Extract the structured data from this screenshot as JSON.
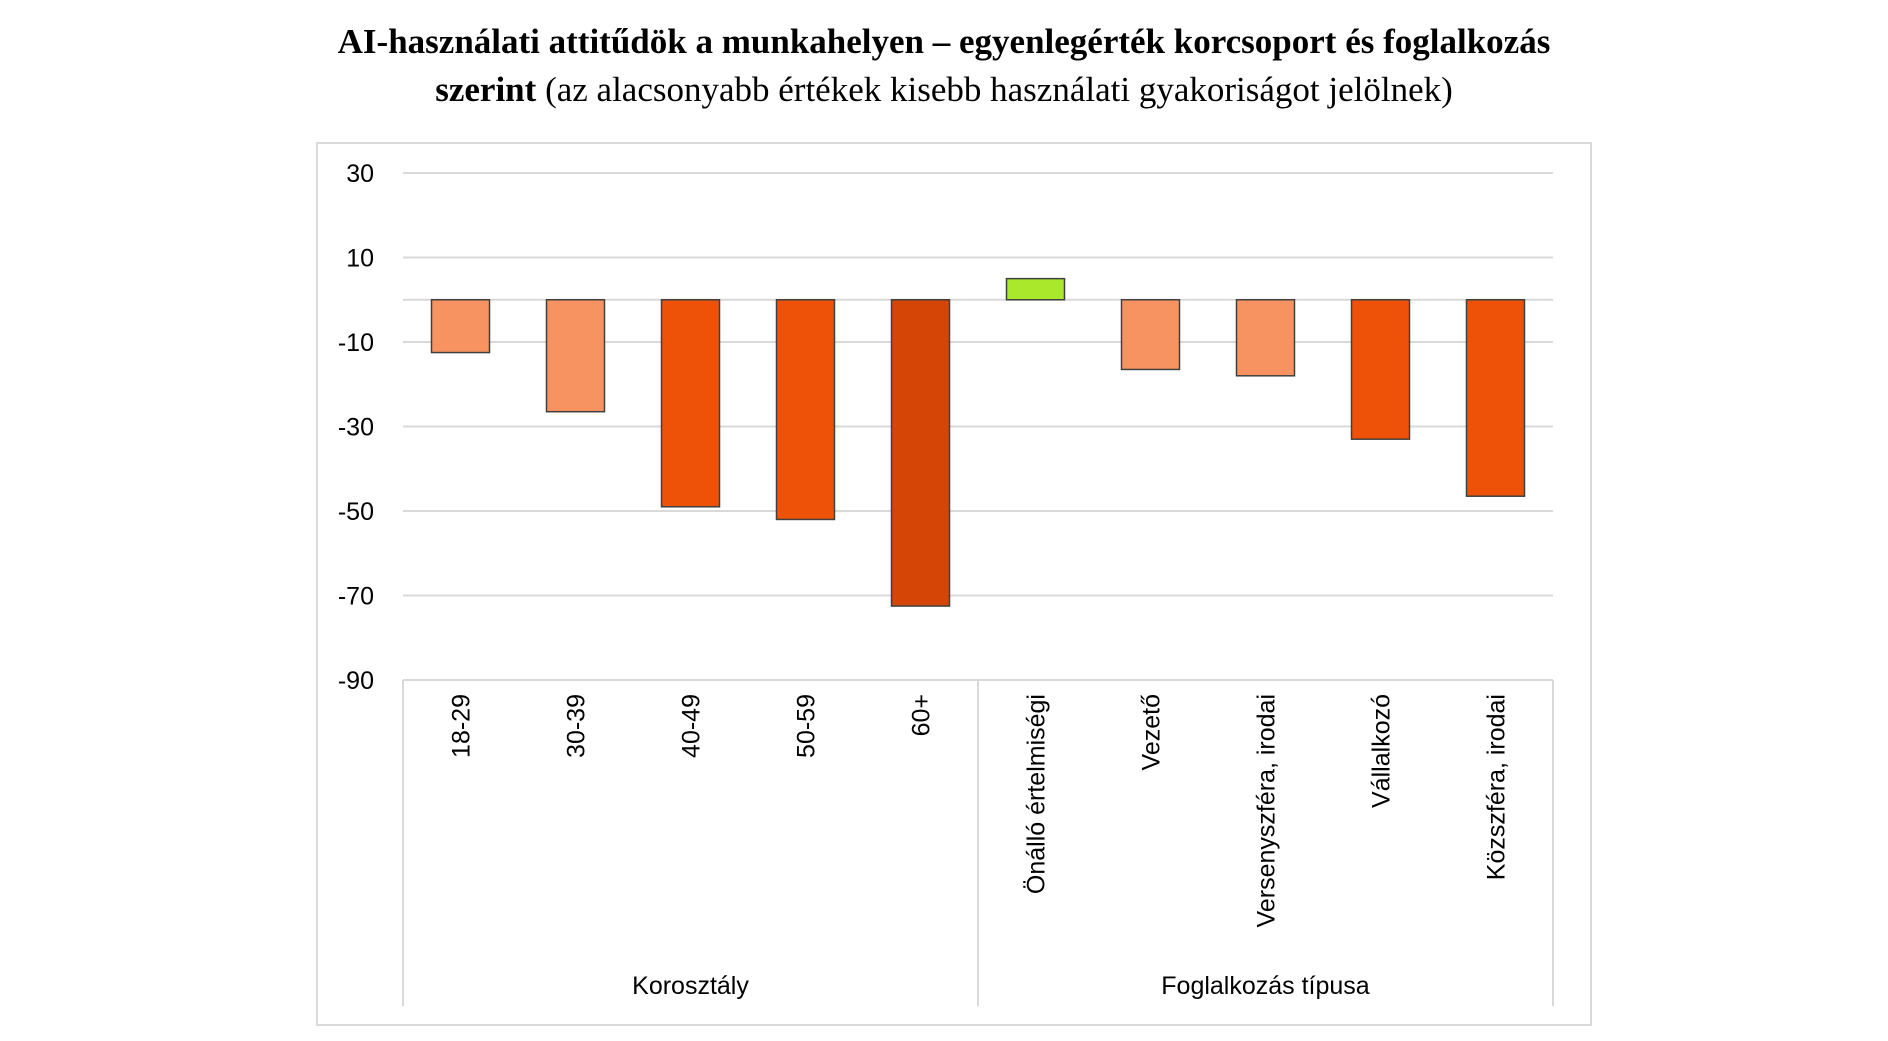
{
  "header": {
    "title_bold": "AI-használati attitűdök a munkahelyen – egyenlegérték korcsoport és foglalkozás",
    "title_line2_bold": "szerint",
    "title_line2_regular": " (az alacsonyabb értékek kisebb használati gyakoriságot jelölnek)"
  },
  "chart_data": {
    "type": "bar",
    "categories": [
      "18-29",
      "30-39",
      "40-49",
      "50-59",
      "60+",
      "Önálló értelmiségi",
      "Vezető",
      "Versenyszféra, irodai",
      "Vállalkozó",
      "Közszféra, irodai"
    ],
    "values": [
      -12.5,
      -26.5,
      -49,
      -52,
      -72.5,
      5,
      -16.5,
      -18,
      -33,
      -46.5
    ],
    "groups": [
      {
        "label": "Korosztály",
        "start": 0,
        "end": 4
      },
      {
        "label": "Foglalkozás típusa",
        "start": 5,
        "end": 9
      }
    ],
    "yticks": [
      "30",
      "10",
      "-10",
      "-30",
      "-50",
      "-70",
      "-90"
    ],
    "ylim": [
      -90,
      30
    ],
    "grid": true,
    "colors": [
      "#f79360",
      "#f79360",
      "#ee5208",
      "#ee5208",
      "#d44506",
      "#a9e82a",
      "#f79360",
      "#f79360",
      "#ee5208",
      "#ee5208"
    ]
  }
}
